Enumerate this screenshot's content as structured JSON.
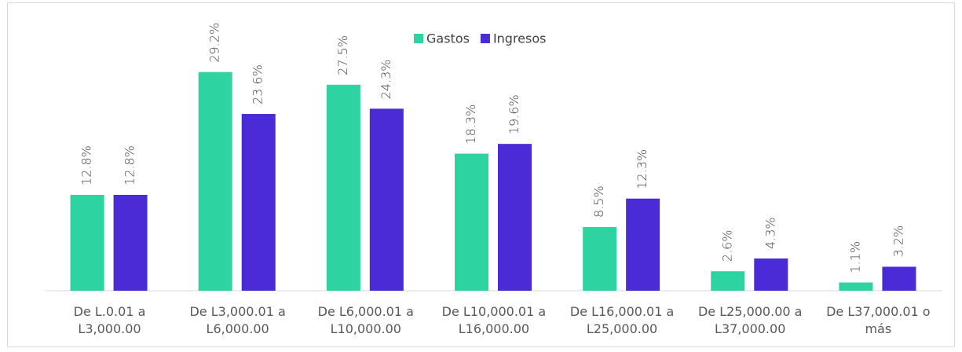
{
  "chart_data": {
    "type": "bar",
    "categories": [
      "De L.0.01 a L3,000.00",
      "De L3,000.01 a L6,000.00",
      "De L6,000.01 a L10,000.00",
      "De L10,000.01 a L16,000.00",
      "De L16,000.01 a L25,000.00",
      "De L25,000.00 a L37,000.00",
      "De L37,000.01 o más"
    ],
    "series": [
      {
        "name": "Gastos",
        "color": "#2dd4a1",
        "values": [
          12.8,
          29.2,
          27.5,
          18.3,
          8.5,
          2.6,
          1.1
        ],
        "value_labels": [
          "12.8%",
          "29.2%",
          "27.5%",
          "18.3%",
          "8.5%",
          "2.6%",
          "1.1%"
        ]
      },
      {
        "name": "Ingresos",
        "color": "#4a2bd5",
        "values": [
          12.8,
          23.6,
          24.3,
          19.6,
          12.3,
          4.3,
          3.2
        ],
        "value_labels": [
          "12.8%",
          "23.6%",
          "24.3%",
          "19.6%",
          "12.3%",
          "4.3%",
          "3.2%"
        ]
      }
    ],
    "ylim": [
      0,
      30
    ],
    "legend": "top"
  }
}
